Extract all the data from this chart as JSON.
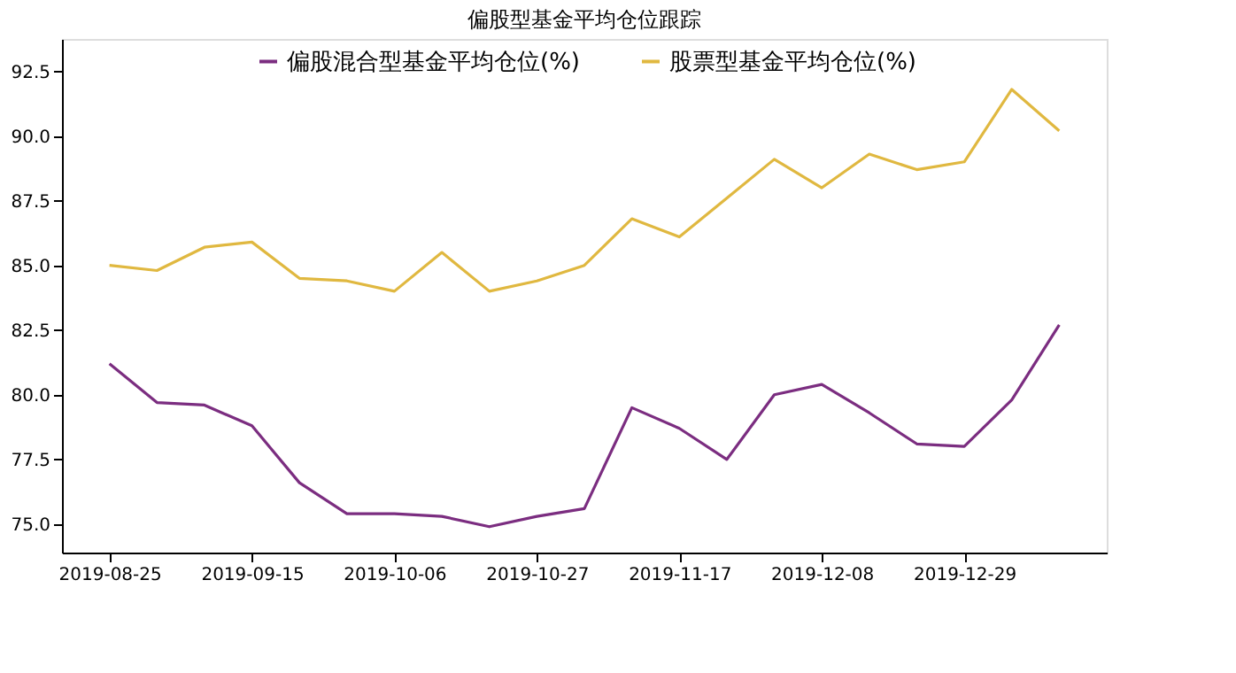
{
  "chart_data": {
    "type": "line",
    "title": "偏股型基金平均仓位跟踪",
    "x": [
      "2019-08-25",
      "2019-09-01",
      "2019-09-08",
      "2019-09-15",
      "2019-09-22",
      "2019-09-29",
      "2019-10-06",
      "2019-10-13",
      "2019-10-20",
      "2019-10-27",
      "2019-11-03",
      "2019-11-10",
      "2019-11-17",
      "2019-11-24",
      "2019-12-01",
      "2019-12-08",
      "2019-12-15",
      "2019-12-22",
      "2019-12-29",
      "2020-01-05",
      "2020-01-12"
    ],
    "series": [
      {
        "name": "偏股混合型基金平均仓位(%)",
        "color": "#7b2d80",
        "values": [
          81.2,
          79.7,
          79.6,
          78.8,
          76.6,
          75.4,
          75.4,
          75.3,
          74.9,
          75.3,
          75.6,
          79.5,
          78.7,
          77.5,
          80.0,
          80.4,
          79.3,
          78.1,
          78.0,
          79.8,
          82.7
        ]
      },
      {
        "name": "股票型基金平均仓位(%)",
        "color": "#e0b840",
        "values": [
          85.0,
          84.8,
          85.7,
          85.9,
          84.5,
          84.4,
          84.0,
          85.5,
          84.0,
          84.4,
          85.0,
          86.8,
          86.1,
          87.6,
          89.1,
          88.0,
          89.3,
          88.7,
          89.0,
          91.8,
          90.2
        ]
      }
    ],
    "xlim": [
      "2019-08-18",
      "2020-01-19"
    ],
    "xticks": [
      "2019-08-25",
      "2019-09-15",
      "2019-10-06",
      "2019-10-27",
      "2019-11-17",
      "2019-12-08",
      "2019-12-29"
    ],
    "ylim": [
      73.9,
      93.75
    ],
    "yticks": [
      {
        "value": 75,
        "label": "75.0"
      },
      {
        "value": 77.5,
        "label": "77.5"
      },
      {
        "value": 80,
        "label": "80.0"
      },
      {
        "value": 82.5,
        "label": "82.5"
      },
      {
        "value": 85,
        "label": "85.0"
      },
      {
        "value": 87.5,
        "label": "87.5"
      },
      {
        "value": 90,
        "label": "90.0"
      },
      {
        "value": 92.5,
        "label": "92.5"
      }
    ],
    "grid": false,
    "legend": "top",
    "line_style": "solid",
    "marker": "none"
  }
}
